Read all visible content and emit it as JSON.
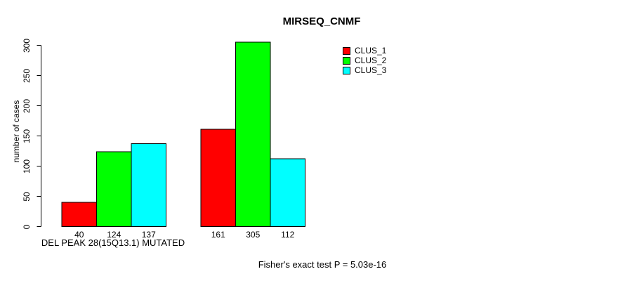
{
  "chart_data": {
    "type": "bar",
    "title": "MIRSEQ_CNMF",
    "ylabel": "number of cases",
    "xlabel": "DEL PEAK 28(15Q13.1) MUTATED",
    "annotation": "Fisher's exact test P = 5.03e-16",
    "ylim": [
      0,
      300
    ],
    "yticks": [
      0,
      50,
      100,
      150,
      200,
      250,
      300
    ],
    "grid": false,
    "legend_position": "top-right",
    "bar_value_labels": true,
    "bar_border_color": "#000000",
    "background_color": "#ffffff",
    "series": [
      {
        "name": "CLUS_1",
        "color": "#ff0000",
        "values": [
          40,
          161
        ]
      },
      {
        "name": "CLUS_2",
        "color": "#00ff00",
        "values": [
          124,
          305
        ]
      },
      {
        "name": "CLUS_3",
        "color": "#00ffff",
        "values": [
          137,
          112
        ]
      }
    ]
  }
}
